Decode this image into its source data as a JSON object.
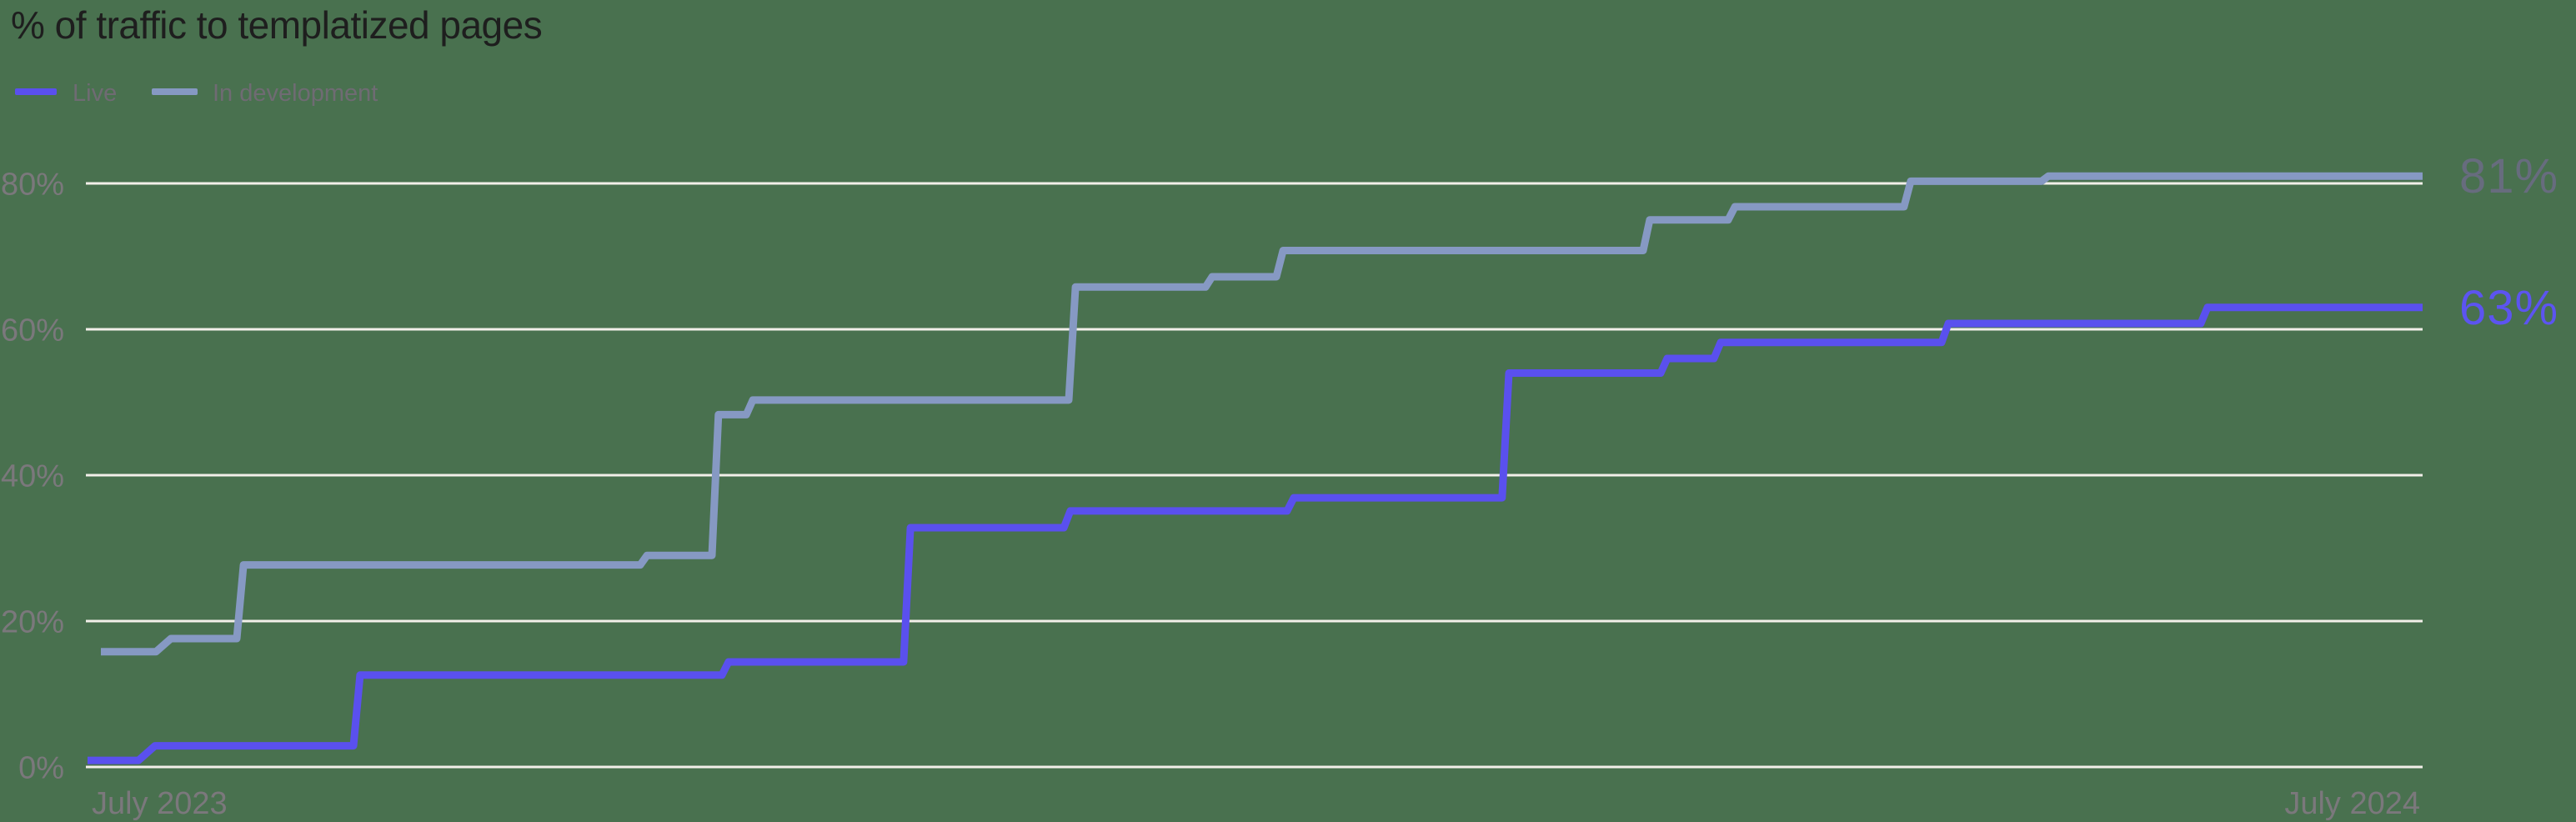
{
  "title": "% of traffic to templatized pages",
  "colors": {
    "background": "#49714f",
    "title": "#1e1e1e",
    "legend_text": "#6f6b73",
    "axis_text": "#7b787c",
    "gridline": "#f2efe9",
    "live": "#5a50ee",
    "in_development": "#8699c3",
    "live_end_label": "#5c54f0",
    "in_development_end_label": "#676c7e"
  },
  "legend": [
    {
      "label": "Live",
      "color_key": "live"
    },
    {
      "label": "In development",
      "color_key": "in_development"
    }
  ],
  "chart_data": {
    "type": "line",
    "subtype": "step",
    "title": "% of traffic to templatized pages",
    "grid": true,
    "legend_position": "top-left",
    "x_axis": {
      "start_label": "July 2023",
      "end_label": "July 2024",
      "range_note": "x encoded as fraction of the July 2023 - July 2024 span"
    },
    "y_axis": {
      "ticks": [
        0,
        20,
        40,
        60,
        80
      ],
      "tick_labels": [
        "0%",
        "20%",
        "40%",
        "60%",
        "80%"
      ],
      "unit": "%",
      "ylim": [
        0,
        88
      ]
    },
    "series": [
      {
        "name": "In development",
        "color_key": "in_development",
        "end_label": "81%",
        "final_value": 81,
        "points": [
          [
            0.0057,
            15.8
          ],
          [
            0.0293,
            15.8
          ],
          [
            0.0357,
            17.6
          ],
          [
            0.0639,
            17.6
          ],
          [
            0.0668,
            27.7
          ],
          [
            0.2367,
            27.7
          ],
          [
            0.2396,
            29.0
          ],
          [
            0.2674,
            29.0
          ],
          [
            0.2702,
            48.3
          ],
          [
            0.2821,
            48.3
          ],
          [
            0.2849,
            50.3
          ],
          [
            0.4202,
            50.3
          ],
          [
            0.4231,
            65.8
          ],
          [
            0.4788,
            65.8
          ],
          [
            0.4816,
            67.2
          ],
          [
            0.5091,
            67.2
          ],
          [
            0.512,
            70.8
          ],
          [
            0.6662,
            70.8
          ],
          [
            0.669,
            75.0
          ],
          [
            0.7026,
            75.0
          ],
          [
            0.7055,
            76.8
          ],
          [
            0.7779,
            76.8
          ],
          [
            0.7808,
            80.3
          ],
          [
            0.8368,
            80.3
          ],
          [
            0.8397,
            81.0
          ],
          [
            1.0,
            81.0
          ]
        ]
      },
      {
        "name": "Live",
        "color_key": "live",
        "end_label": "63%",
        "final_value": 63,
        "points": [
          [
            0.0,
            0.9
          ],
          [
            0.0218,
            0.9
          ],
          [
            0.0289,
            2.9
          ],
          [
            0.1139,
            2.9
          ],
          [
            0.1167,
            12.6
          ],
          [
            0.2717,
            12.6
          ],
          [
            0.2745,
            14.4
          ],
          [
            0.3495,
            14.4
          ],
          [
            0.3524,
            32.8
          ],
          [
            0.4181,
            32.8
          ],
          [
            0.4209,
            35.1
          ],
          [
            0.5137,
            35.1
          ],
          [
            0.5166,
            36.9
          ],
          [
            0.6058,
            36.9
          ],
          [
            0.6087,
            54.0
          ],
          [
            0.6737,
            54.0
          ],
          [
            0.6765,
            56.0
          ],
          [
            0.6965,
            56.0
          ],
          [
            0.6994,
            58.2
          ],
          [
            0.794,
            58.2
          ],
          [
            0.7969,
            60.8
          ],
          [
            0.905,
            60.8
          ],
          [
            0.9079,
            63.0
          ],
          [
            1.0,
            63.0
          ]
        ]
      }
    ]
  }
}
